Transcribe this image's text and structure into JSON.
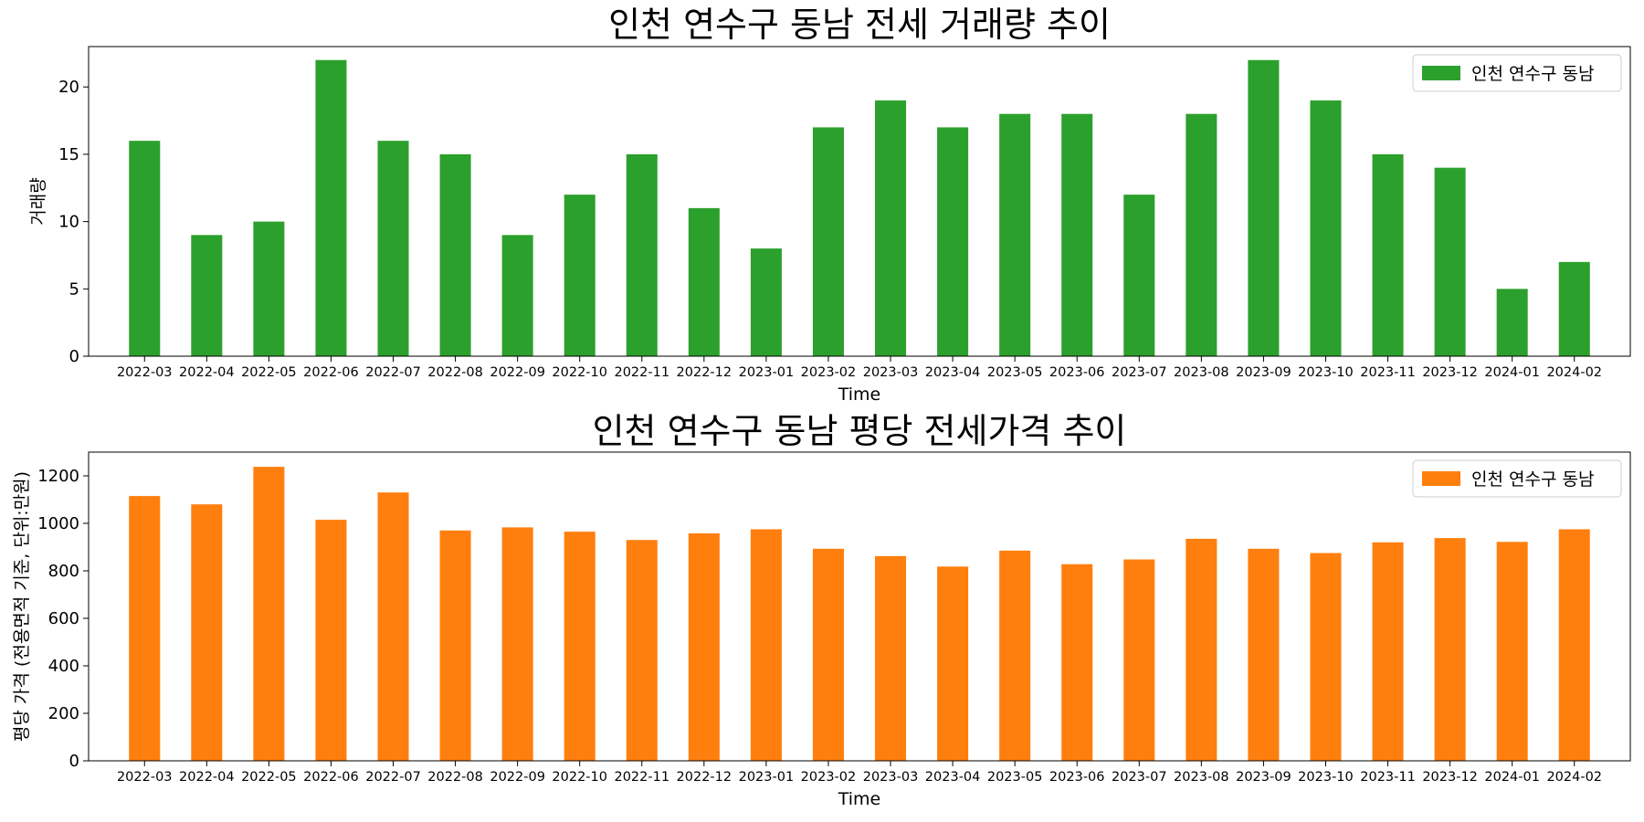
{
  "chart_data": [
    {
      "type": "bar",
      "title": "인천 연수구 동남 전세 거래량 추이",
      "xlabel": "Time",
      "ylabel": "거래량",
      "ylim": [
        0,
        23
      ],
      "yticks": [
        0,
        5,
        10,
        15,
        20
      ],
      "grid": false,
      "legend_position": "top-right",
      "categories": [
        "2022-03",
        "2022-04",
        "2022-05",
        "2022-06",
        "2022-07",
        "2022-08",
        "2022-09",
        "2022-10",
        "2022-11",
        "2022-12",
        "2023-01",
        "2023-02",
        "2023-03",
        "2023-04",
        "2023-05",
        "2023-06",
        "2023-07",
        "2023-08",
        "2023-09",
        "2023-10",
        "2023-11",
        "2023-12",
        "2024-01",
        "2024-02"
      ],
      "series": [
        {
          "name": "인천 연수구 동남",
          "color": "#2ca02c",
          "values": [
            16,
            9,
            10,
            22,
            16,
            15,
            9,
            12,
            15,
            11,
            8,
            17,
            19,
            17,
            18,
            18,
            12,
            18,
            22,
            19,
            15,
            14,
            5,
            7
          ]
        }
      ]
    },
    {
      "type": "bar",
      "title": "인천 연수구 동남 평당 전세가격 추이",
      "xlabel": "Time",
      "ylabel": "평당 가격 (전용면적 기준, 단위:만원)",
      "ylim": [
        0,
        1300
      ],
      "yticks": [
        0,
        200,
        400,
        600,
        800,
        1000,
        1200
      ],
      "grid": false,
      "legend_position": "top-right",
      "categories": [
        "2022-03",
        "2022-04",
        "2022-05",
        "2022-06",
        "2022-07",
        "2022-08",
        "2022-09",
        "2022-10",
        "2022-11",
        "2022-12",
        "2023-01",
        "2023-02",
        "2023-03",
        "2023-04",
        "2023-05",
        "2023-06",
        "2023-07",
        "2023-08",
        "2023-09",
        "2023-10",
        "2023-11",
        "2023-12",
        "2024-01",
        "2024-02"
      ],
      "series": [
        {
          "name": "인천 연수구 동남",
          "color": "#ff7f0e",
          "values": [
            1115,
            1080,
            1238,
            1015,
            1130,
            970,
            983,
            965,
            930,
            958,
            975,
            893,
            862,
            818,
            885,
            828,
            848,
            935,
            893,
            875,
            920,
            938,
            922,
            975
          ]
        }
      ]
    }
  ]
}
